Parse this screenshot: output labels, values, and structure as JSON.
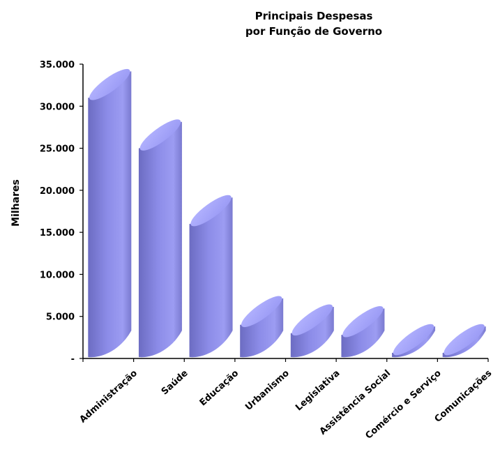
{
  "chart_data": {
    "type": "bar",
    "title": [
      "Principais Despesas",
      "por Função de Governo"
    ],
    "ylabel": "Milhares",
    "xlabel": "",
    "ylim": [
      0,
      35000
    ],
    "yticks": [
      0,
      5000,
      10000,
      15000,
      20000,
      25000,
      30000,
      35000
    ],
    "ytick_labels": [
      "-",
      "5.000",
      "10.000",
      "15.000",
      "20.000",
      "25.000",
      "30.000",
      "35.000"
    ],
    "categories": [
      "Administração",
      "Saúde",
      "Educação",
      "Urbanismo",
      "Legislativa",
      "Assistência Social",
      "Comércio e Serviço",
      "Comunicações"
    ],
    "values": [
      31000,
      25000,
      16000,
      4000,
      3000,
      2800,
      600,
      150
    ],
    "grid": false,
    "legend": "none",
    "bar_style": "3d-cylinder",
    "colors": {
      "bar_front": "#8c8ce8",
      "bar_top": "#a8a8ff",
      "axis": "#000000"
    }
  }
}
